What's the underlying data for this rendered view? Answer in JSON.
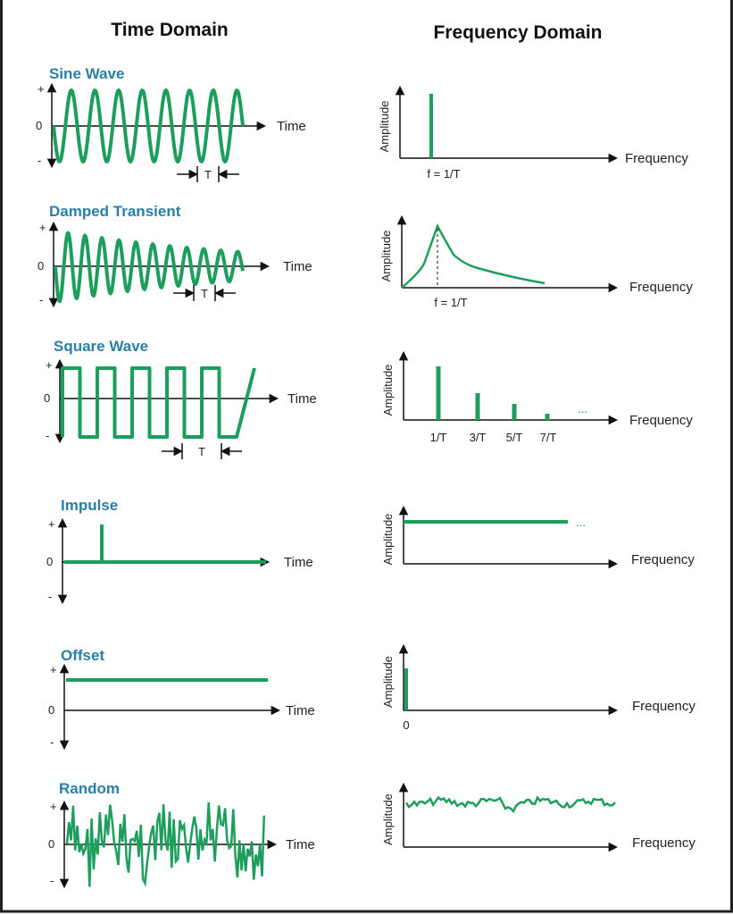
{
  "headers": {
    "time": "Time Domain",
    "frequency": "Frequency Domain"
  },
  "axis_labels": {
    "time": "Time",
    "frequency": "Frequency",
    "amplitude": "Amplitude",
    "plus": "+",
    "zero": "0",
    "minus": "-",
    "period": "T",
    "ellipsis": "..."
  },
  "colors": {
    "title": "#2a7fa6",
    "signal": "#1e9e5c",
    "axis": "#111111"
  },
  "rows": [
    {
      "title": "Sine Wave",
      "freq_label": "f = 1/T"
    },
    {
      "title": "Damped Transient",
      "freq_label": "f = 1/T"
    },
    {
      "title": "Square Wave",
      "harmonics": [
        "1/T",
        "3/T",
        "5/T",
        "7/T"
      ]
    },
    {
      "title": "Impulse"
    },
    {
      "title": "Offset",
      "freq_zero": "0"
    },
    {
      "title": "Random"
    }
  ]
}
